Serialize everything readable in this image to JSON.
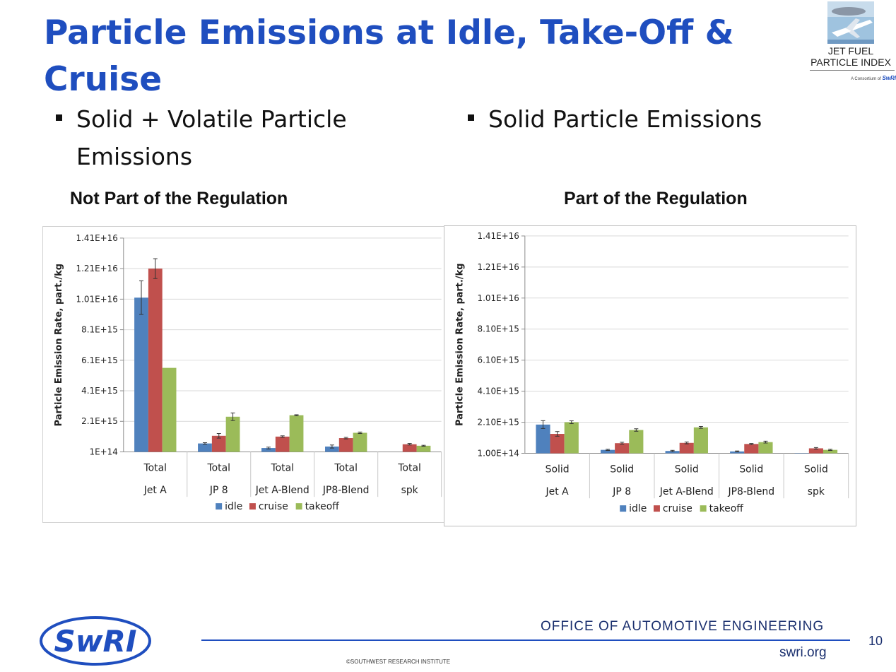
{
  "title": "Particle Emissions at Idle, Take-Off & Cruise",
  "logo": {
    "line1": "JET FUEL",
    "line2": "PARTICLE INDEX",
    "consortium": "A Consortium of",
    "consortium_brand": "SwRI"
  },
  "bullets": [
    {
      "text": "Solid + Volatile Particle Emissions"
    },
    {
      "text": "Solid Particle Emissions"
    }
  ],
  "subheadings": [
    "Not Part of the Regulation",
    "Part of the Regulation"
  ],
  "colors": {
    "idle": "#4f81bd",
    "cruise": "#c0504d",
    "takeoff": "#9bbb59",
    "title": "#1f4ebf"
  },
  "chart_data": [
    {
      "type": "bar",
      "ylabel": "Particle Emission Rate, part./kg",
      "yticks": [
        "1E+14",
        "2.1E+15",
        "4.1E+15",
        "6.1E+15",
        "8.1E+15",
        "1.01E+16",
        "1.21E+16",
        "1.41E+16"
      ],
      "ylim": [
        100000000000000.0,
        1.41e+16
      ],
      "categories": [
        {
          "sub": "Total",
          "group": "Jet A"
        },
        {
          "sub": "Total",
          "group": "JP 8"
        },
        {
          "sub": "Total",
          "group": "Jet A-Blend"
        },
        {
          "sub": "Total",
          "group": "JP8-Blend"
        },
        {
          "sub": "Total",
          "group": "spk"
        }
      ],
      "series": [
        {
          "name": "idle",
          "values": [
            1.02e+16,
            650000000000000.0,
            350000000000000.0,
            450000000000000.0,
            null
          ],
          "errors": [
            1100000000000000.0,
            50000000000000.0,
            60000000000000.0,
            100000000000000.0,
            null
          ]
        },
        {
          "name": "cruise",
          "values": [
            1.21e+16,
            1150000000000000.0,
            1100000000000000.0,
            1000000000000000.0,
            600000000000000.0
          ],
          "errors": [
            650000000000000.0,
            150000000000000.0,
            50000000000000.0,
            50000000000000.0,
            50000000000000.0
          ]
        },
        {
          "name": "takeoff",
          "values": [
            5600000000000000.0,
            2400000000000000.0,
            2500000000000000.0,
            1350000000000000.0,
            500000000000000.0
          ],
          "errors": [
            null,
            250000000000000.0,
            30000000000000.0,
            50000000000000.0,
            30000000000000.0
          ]
        }
      ],
      "legend": "bottom",
      "grid": true
    },
    {
      "type": "bar",
      "ylabel": "Particle Emission Rate, part./kg",
      "yticks": [
        "1.00E+14",
        "2.10E+15",
        "4.10E+15",
        "6.10E+15",
        "8.10E+15",
        "1.01E+16",
        "1.21E+16",
        "1.41E+16"
      ],
      "ylim": [
        100000000000000.0,
        1.41e+16
      ],
      "categories": [
        {
          "sub": "Solid",
          "group": "Jet A"
        },
        {
          "sub": "Solid",
          "group": "JP 8"
        },
        {
          "sub": "Solid",
          "group": "Jet A-Blend"
        },
        {
          "sub": "Solid",
          "group": "JP8-Blend"
        },
        {
          "sub": "Solid",
          "group": "spk"
        }
      ],
      "series": [
        {
          "name": "idle",
          "values": [
            1950000000000000.0,
            320000000000000.0,
            250000000000000.0,
            220000000000000.0,
            120000000000000.0
          ],
          "errors": [
            250000000000000.0,
            40000000000000.0,
            40000000000000.0,
            30000000000000.0,
            null
          ]
        },
        {
          "name": "cruise",
          "values": [
            1350000000000000.0,
            750000000000000.0,
            770000000000000.0,
            700000000000000.0,
            420000000000000.0
          ],
          "errors": [
            150000000000000.0,
            60000000000000.0,
            60000000000000.0,
            30000000000000.0,
            50000000000000.0
          ]
        },
        {
          "name": "takeoff",
          "values": [
            2100000000000000.0,
            1600000000000000.0,
            1770000000000000.0,
            820000000000000.0,
            320000000000000.0
          ],
          "errors": [
            90000000000000.0,
            80000000000000.0,
            60000000000000.0,
            60000000000000.0,
            40000000000000.0
          ]
        }
      ],
      "legend": "bottom",
      "grid": true
    }
  ],
  "footer": {
    "office": "OFFICE OF AUTOMOTIVE ENGINEERING",
    "site": "swri.org",
    "page": "10",
    "copyright": "©SOUTHWEST RESEARCH INSTITUTE",
    "brand": "SwRI"
  }
}
